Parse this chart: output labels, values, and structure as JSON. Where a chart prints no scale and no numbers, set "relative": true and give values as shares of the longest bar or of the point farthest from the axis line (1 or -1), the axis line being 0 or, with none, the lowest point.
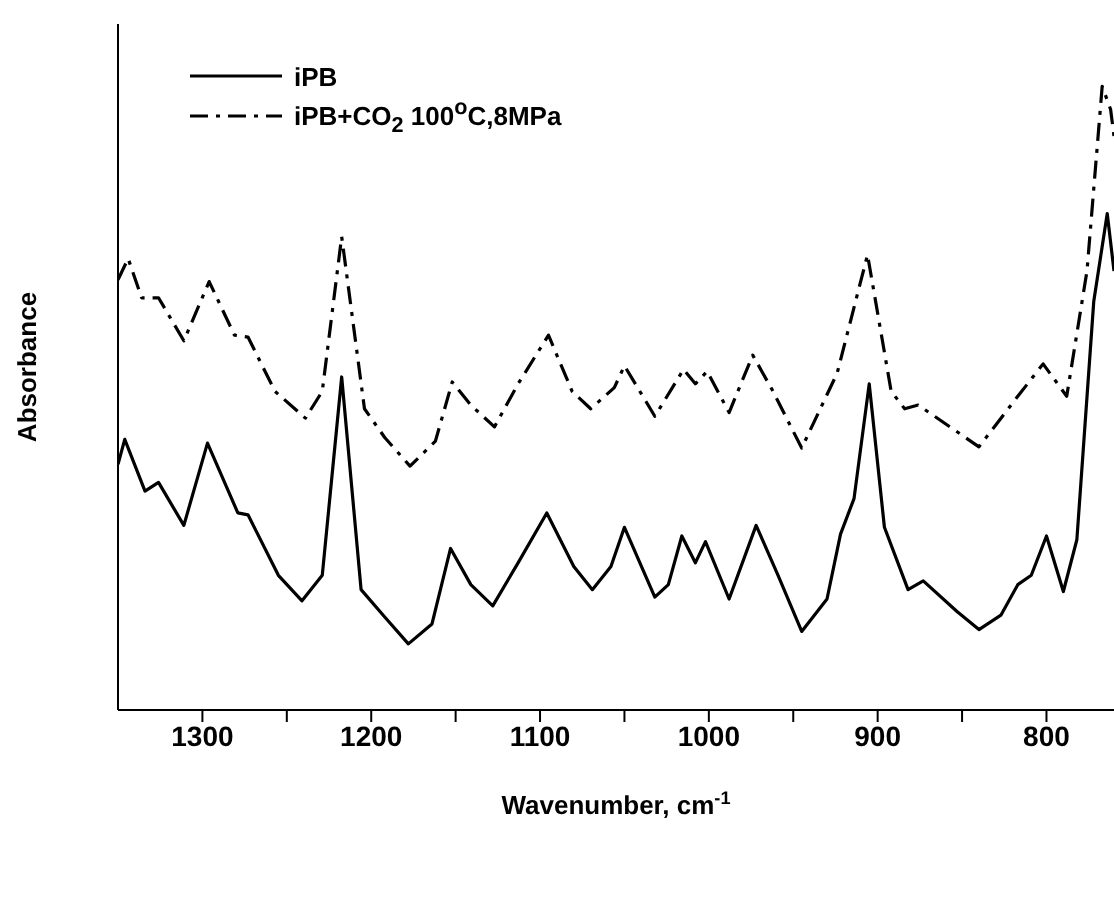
{
  "chart_data": {
    "type": "line",
    "xlabel": "Wavenumber, cm$^{-1}$",
    "ylabel": "Absorbance",
    "relative": true,
    "legend": "top left",
    "xlim": [
      1350,
      760
    ],
    "xticks": [
      1300,
      {
        "value": 1250,
        "label": null
      },
      1200,
      {
        "value": 1150,
        "label": null
      },
      1100,
      {
        "value": 1050,
        "label": null
      },
      1000,
      {
        "value": 950,
        "label": null
      },
      900,
      {
        "value": 850,
        "label": null
      },
      800
    ],
    "series": [
      {
        "name": "iPB",
        "color": "#000000",
        "line_style": "solid",
        "x": [
          1350,
          1346,
          1334,
          1326,
          1311,
          1297,
          1279,
          1273,
          1255,
          1241,
          1229,
          1217.5,
          1206,
          1192,
          1178,
          1164,
          1153,
          1141,
          1128,
          1113,
          1096,
          1080,
          1069,
          1058,
          1050,
          1032,
          1024,
          1016,
          1008,
          1002,
          988,
          972,
          959,
          945,
          930,
          922,
          914,
          905,
          896,
          882,
          873,
          853,
          840,
          827,
          817,
          809,
          800,
          790,
          782,
          772,
          764,
          760
        ],
        "values": [
          0.394,
          0.434,
          0.351,
          0.365,
          0.296,
          0.428,
          0.316,
          0.313,
          0.216,
          0.175,
          0.216,
          0.534,
          0.193,
          0.149,
          0.106,
          0.138,
          0.259,
          0.201,
          0.167,
          0.236,
          0.316,
          0.23,
          0.193,
          0.23,
          0.293,
          0.181,
          0.201,
          0.279,
          0.236,
          0.27,
          0.178,
          0.296,
          0.216,
          0.126,
          0.178,
          0.282,
          0.339,
          0.523,
          0.293,
          0.193,
          0.207,
          0.158,
          0.129,
          0.152,
          0.201,
          0.216,
          0.279,
          0.19,
          0.273,
          0.655,
          0.796,
          0.704
        ]
      },
      {
        "name": "iPB+CO$_{2}$  100$^{o}$C,8MPa",
        "color": "#000000",
        "line_style": "dashed",
        "x": [
          1350,
          1344,
          1336,
          1326,
          1311,
          1296,
          1281,
          1273,
          1257,
          1239,
          1229,
          1217.5,
          1204,
          1192,
          1177,
          1162,
          1152,
          1141,
          1127,
          1113,
          1095,
          1081,
          1070,
          1056,
          1050,
          1032,
          1015,
          1008,
          1001,
          988,
          974,
          962,
          945,
          924,
          906,
          892,
          884,
          876,
          840,
          817,
          802,
          788,
          776,
          767,
          762,
          760
        ],
        "values": [
          0.69,
          0.724,
          0.661,
          0.661,
          0.592,
          0.687,
          0.601,
          0.598,
          0.511,
          0.468,
          0.511,
          0.759,
          0.483,
          0.437,
          0.391,
          0.431,
          0.526,
          0.489,
          0.454,
          0.523,
          0.601,
          0.511,
          0.483,
          0.517,
          0.552,
          0.471,
          0.546,
          0.523,
          0.543,
          0.477,
          0.569,
          0.511,
          0.42,
          0.54,
          0.73,
          0.511,
          0.483,
          0.489,
          0.422,
          0.503,
          0.555,
          0.503,
          0.704,
          1,
          0.963,
          0.92
        ]
      }
    ]
  }
}
